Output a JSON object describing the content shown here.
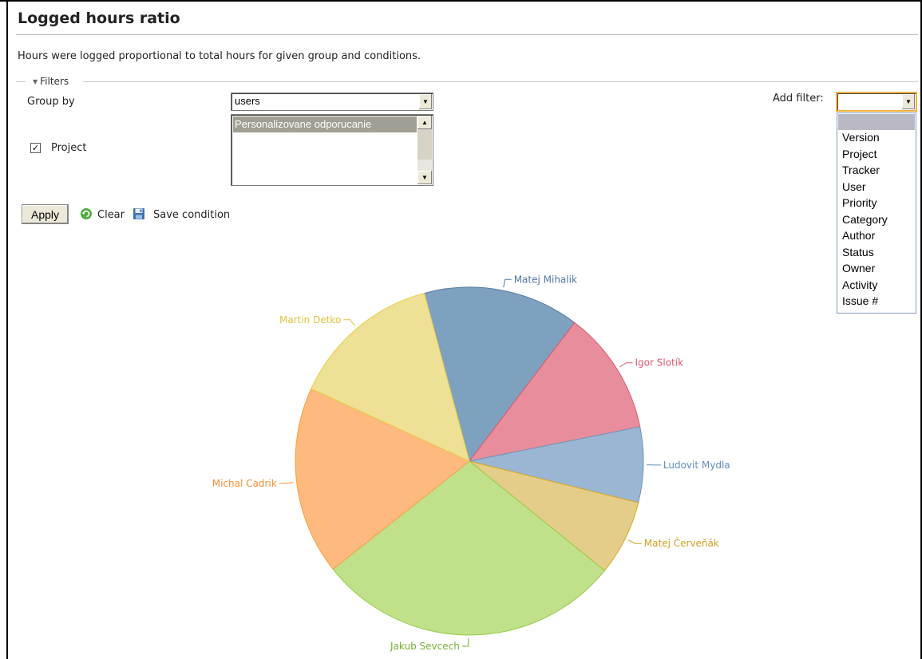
{
  "page": {
    "title": "Logged hours ratio",
    "description": "Hours were logged proportional to total hours for given group and conditions."
  },
  "filters": {
    "legend": "Filters",
    "group_by_label": "Group by",
    "group_by_value": "users",
    "project_label": "Project",
    "project_checked": true,
    "project_options": [
      "Personalizovane odporucanie"
    ],
    "add_filter_label": "Add filter:",
    "add_filter_value": "",
    "add_filter_options": [
      "",
      "Version",
      "Project",
      "Tracker",
      "User",
      "Priority",
      "Category",
      "Author",
      "Status",
      "Owner",
      "Activity",
      "Issue #"
    ]
  },
  "actions": {
    "apply_label": "Apply",
    "clear_label": "Clear",
    "save_label": "Save condition"
  },
  "chart_data": {
    "type": "pie",
    "slices": [
      {
        "name": "Matej Mihalik",
        "value": 14.5,
        "color": "#7ea1c0",
        "stroke": "#5a7f9f"
      },
      {
        "name": "Igor Slotík",
        "value": 11.5,
        "color": "#e88d9c",
        "stroke": "#e05870"
      },
      {
        "name": "Ludovit Mydla",
        "value": 7.0,
        "color": "#9ab6d2",
        "stroke": "#6f95bd"
      },
      {
        "name": "Matej Červeňák",
        "value": 7.0,
        "color": "#e4cd88",
        "stroke": "#d8a81e"
      },
      {
        "name": "Jakub Sevcech",
        "value": 28.5,
        "color": "#c0e08a",
        "stroke": "#98cc4a"
      },
      {
        "name": "Michal Cadrik",
        "value": 17.5,
        "color": "#fdb97e",
        "stroke": "#f9a040"
      },
      {
        "name": "Martin Detko",
        "value": 14.0,
        "color": "#eee094",
        "stroke": "#e8cc4a"
      }
    ],
    "label_colors": {
      "Matej Mihalik": "#4f76a0",
      "Igor Slotík": "#e05870",
      "Ludovit Mydla": "#5f8ec0",
      "Matej Červeňák": "#d0a020",
      "Jakub Sevcech": "#78b030",
      "Michal Cadrik": "#f59033",
      "Martin Detko": "#e0c440"
    }
  }
}
